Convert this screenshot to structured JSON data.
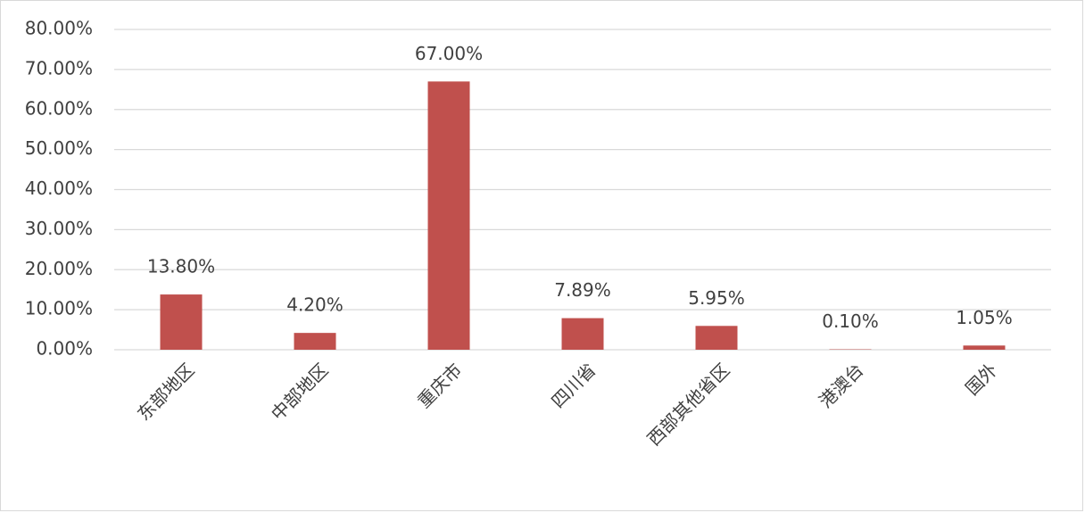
{
  "chart_data": {
    "type": "bar",
    "categories": [
      "东部地区",
      "中部地区",
      "重庆市",
      "四川省",
      "西部其他省区",
      "港澳台",
      "国外"
    ],
    "values": [
      13.8,
      4.2,
      67.0,
      7.89,
      5.95,
      0.1,
      1.05
    ],
    "value_labels": [
      "13.80%",
      "4.20%",
      "67.00%",
      "7.89%",
      "5.95%",
      "0.10%",
      "1.05%"
    ],
    "color": "#c0504d",
    "ylim": [
      0,
      80
    ],
    "yticks": [
      {
        "value": 0,
        "label": "0.00%"
      },
      {
        "value": 10,
        "label": "10.00%"
      },
      {
        "value": 20,
        "label": "20.00%"
      },
      {
        "value": 30,
        "label": "30.00%"
      },
      {
        "value": 40,
        "label": "40.00%"
      },
      {
        "value": 50,
        "label": "50.00%"
      },
      {
        "value": 60,
        "label": "60.00%"
      },
      {
        "value": 70,
        "label": "70.00%"
      },
      {
        "value": 80,
        "label": "80.00%"
      }
    ],
    "grid": true
  }
}
